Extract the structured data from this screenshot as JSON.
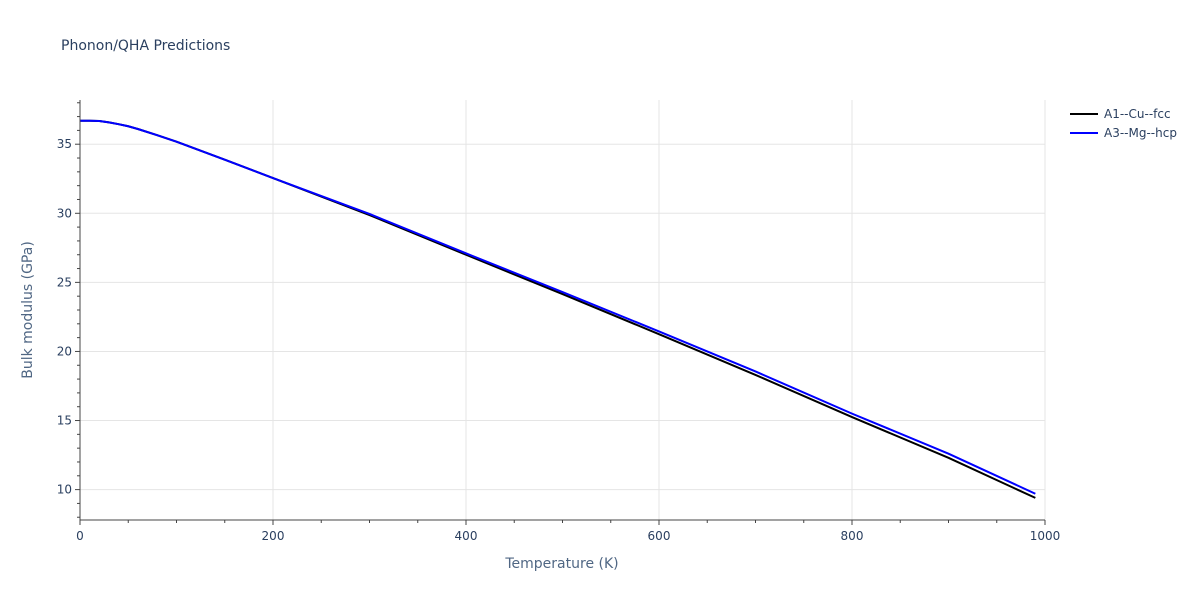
{
  "chart_data": {
    "type": "line",
    "title": "Phonon/QHA Predictions",
    "xlabel": "Temperature (K)",
    "ylabel": "Bulk modulus (GPa)",
    "xlim": [
      0,
      1000
    ],
    "ylim": [
      7.8,
      38.2
    ],
    "x_ticks": [
      0,
      200,
      400,
      600,
      800,
      1000
    ],
    "x_tick_labels": [
      "0",
      "200",
      "400",
      "600",
      "800",
      "1000"
    ],
    "y_ticks": [
      10,
      15,
      20,
      25,
      30,
      35
    ],
    "y_tick_labels": [
      "10",
      "15",
      "20",
      "25",
      "30",
      "35"
    ],
    "grid": true,
    "legend_position": "top-right",
    "series": [
      {
        "name": "A1--Cu--fcc",
        "color": "#000000",
        "x": [
          0,
          10,
          20,
          30,
          40,
          50,
          60,
          80,
          100,
          150,
          200,
          300,
          400,
          500,
          600,
          700,
          800,
          900,
          990
        ],
        "y": [
          36.7,
          36.7,
          36.68,
          36.58,
          36.45,
          36.3,
          36.1,
          35.65,
          35.18,
          33.88,
          32.55,
          29.87,
          27.0,
          24.15,
          21.25,
          18.3,
          15.25,
          12.3,
          9.4
        ]
      },
      {
        "name": "A3--Mg--hcp",
        "color": "#0000ff",
        "x": [
          0,
          10,
          20,
          30,
          40,
          50,
          60,
          80,
          100,
          150,
          200,
          300,
          400,
          500,
          600,
          700,
          800,
          900,
          990
        ],
        "y": [
          36.7,
          36.7,
          36.68,
          36.58,
          36.45,
          36.3,
          36.1,
          35.65,
          35.18,
          33.88,
          32.55,
          29.95,
          27.1,
          24.3,
          21.45,
          18.55,
          15.5,
          12.6,
          9.7
        ]
      }
    ]
  }
}
